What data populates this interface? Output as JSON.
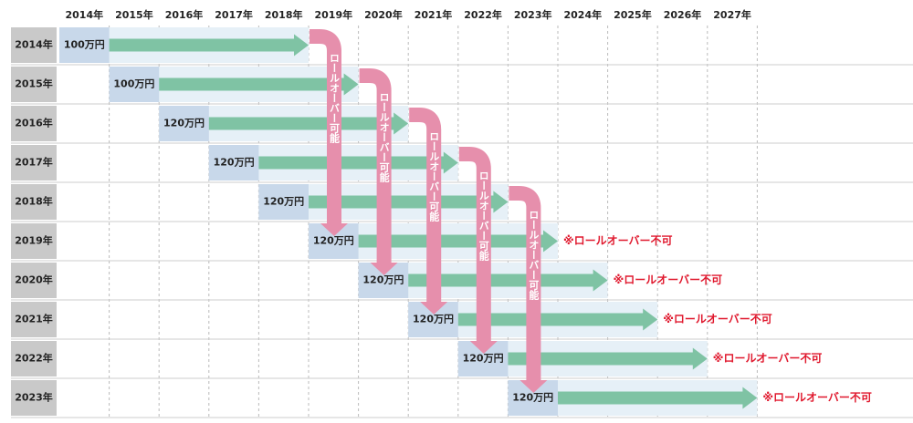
{
  "header": {
    "years": [
      "2014年",
      "2015年",
      "2016年",
      "2017年",
      "2018年",
      "2019年",
      "2020年",
      "2021年",
      "2022年",
      "2023年",
      "2024年",
      "2025年",
      "2026年",
      "2027年"
    ]
  },
  "rows": [
    {
      "label": "2014年",
      "amount": "100万円",
      "rollover": "ロールオーバー可能"
    },
    {
      "label": "2015年",
      "amount": "100万円",
      "rollover": "ロールオーバー可能"
    },
    {
      "label": "2016年",
      "amount": "120万円",
      "rollover": "ロールオーバー可能"
    },
    {
      "label": "2017年",
      "amount": "120万円",
      "rollover": "ロールオーバー可能"
    },
    {
      "label": "2018年",
      "amount": "120万円",
      "rollover": "ロールオーバー可能"
    },
    {
      "label": "2019年",
      "amount": "120万円",
      "note": "※ロールオーバー不可"
    },
    {
      "label": "2020年",
      "amount": "120万円",
      "note": "※ロールオーバー不可"
    },
    {
      "label": "2021年",
      "amount": "120万円",
      "note": "※ロールオーバー不可"
    },
    {
      "label": "2022年",
      "amount": "120万円",
      "note": "※ロールオーバー不可"
    },
    {
      "label": "2023年",
      "amount": "120万円",
      "note": "※ロールオーバー不可"
    }
  ]
}
